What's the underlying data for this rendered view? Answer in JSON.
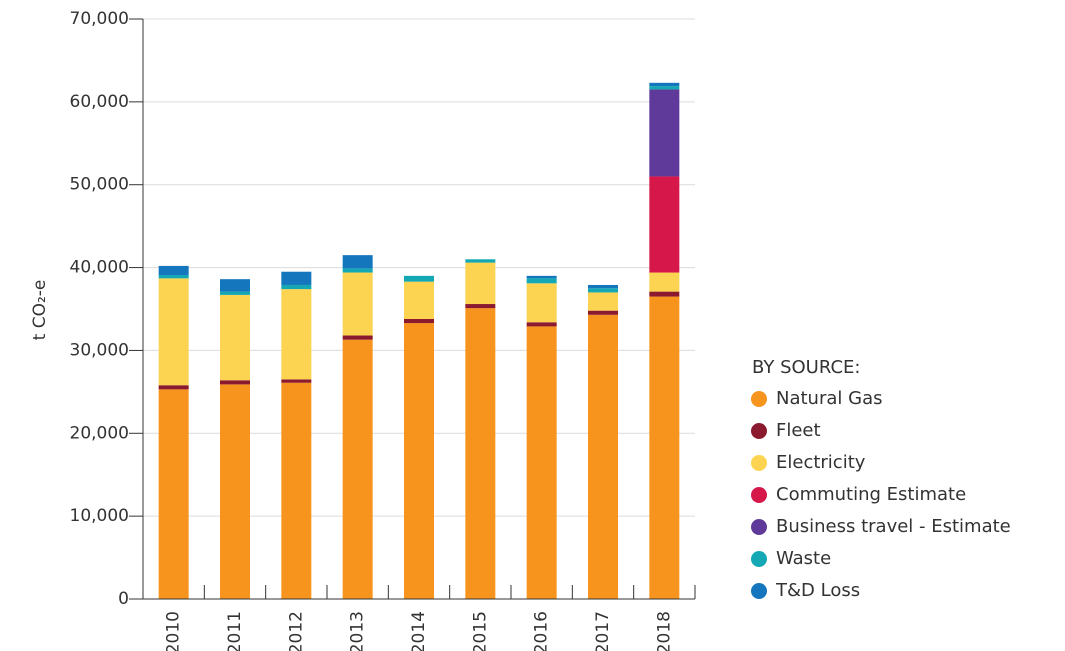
{
  "chart_data": {
    "type": "stacked_bar",
    "y_label": "t CO₂-e",
    "legend_title": "BY SOURCE:",
    "categories": [
      "2010",
      "2011",
      "2012",
      "2013",
      "2014",
      "2015",
      "2016",
      "2017",
      "2018"
    ],
    "series": [
      {
        "name": "Natural Gas",
        "color": "#f7941d",
        "values": [
          25300,
          25900,
          26100,
          31300,
          33300,
          35100,
          32900,
          34300,
          36500
        ]
      },
      {
        "name": "Fleet",
        "color": "#8b1a2e",
        "values": [
          500,
          500,
          400,
          500,
          500,
          500,
          500,
          500,
          600
        ]
      },
      {
        "name": "Electricity",
        "color": "#fdd451",
        "values": [
          12900,
          10300,
          10900,
          7600,
          4500,
          5000,
          4700,
          2200,
          2300
        ]
      },
      {
        "name": "Commuting Estimate",
        "color": "#d6174a",
        "values": [
          0,
          0,
          0,
          0,
          0,
          0,
          0,
          0,
          11600
        ]
      },
      {
        "name": "Business travel - Estimate",
        "color": "#5f3a9a",
        "values": [
          0,
          0,
          0,
          0,
          0,
          0,
          0,
          0,
          10500
        ]
      },
      {
        "name": "Waste",
        "color": "#14a8b5",
        "values": [
          400,
          400,
          500,
          500,
          700,
          400,
          600,
          500,
          400
        ]
      },
      {
        "name": "T&D Loss",
        "color": "#1476bd",
        "values": [
          1100,
          1500,
          1600,
          1600,
          0,
          0,
          300,
          400,
          400
        ]
      }
    ],
    "ylim": [
      0,
      70000
    ],
    "yticks": [
      0,
      {
        "value": 10000,
        "label": "10,000"
      },
      {
        "value": 20000,
        "label": "20,000"
      },
      {
        "value": 30000,
        "label": "30,000"
      },
      {
        "value": 40000,
        "label": "40,000"
      },
      {
        "value": 50000,
        "label": "50,000"
      },
      {
        "value": 60000,
        "label": "60,000"
      },
      {
        "value": 70000,
        "label": "70,000"
      }
    ],
    "grid": true
  }
}
